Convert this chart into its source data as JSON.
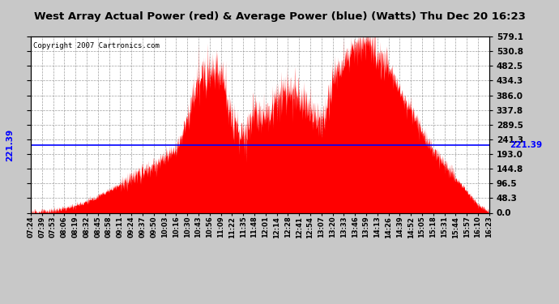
{
  "title": "West Array Actual Power (red) & Average Power (blue) (Watts) Thu Dec 20 16:23",
  "copyright": "Copyright 2007 Cartronics.com",
  "avg_power": 221.39,
  "y_ticks": [
    0.0,
    48.3,
    96.5,
    144.8,
    193.0,
    241.3,
    289.5,
    337.8,
    386.0,
    434.3,
    482.5,
    530.8,
    579.1
  ],
  "y_max": 579.1,
  "background_color": "#c8c8c8",
  "fill_color": "#ff0000",
  "line_color": "#0000ff",
  "x_labels": [
    "07:24",
    "07:39",
    "07:53",
    "08:06",
    "08:19",
    "08:32",
    "08:45",
    "08:58",
    "09:11",
    "09:24",
    "09:37",
    "09:50",
    "10:03",
    "10:16",
    "10:30",
    "10:43",
    "10:56",
    "11:09",
    "11:22",
    "11:35",
    "11:48",
    "12:01",
    "12:14",
    "12:28",
    "12:41",
    "12:54",
    "13:07",
    "13:20",
    "13:33",
    "13:46",
    "13:59",
    "14:13",
    "14:26",
    "14:39",
    "14:52",
    "15:05",
    "15:18",
    "15:31",
    "15:44",
    "15:57",
    "16:10",
    "16:23"
  ],
  "power_values": [
    2,
    4,
    8,
    15,
    25,
    38,
    55,
    75,
    95,
    115,
    135,
    155,
    180,
    215,
    310,
    430,
    480,
    460,
    310,
    260,
    340,
    320,
    370,
    400,
    380,
    340,
    300,
    430,
    500,
    540,
    560,
    520,
    480,
    400,
    340,
    270,
    210,
    160,
    115,
    70,
    28,
    4
  ]
}
